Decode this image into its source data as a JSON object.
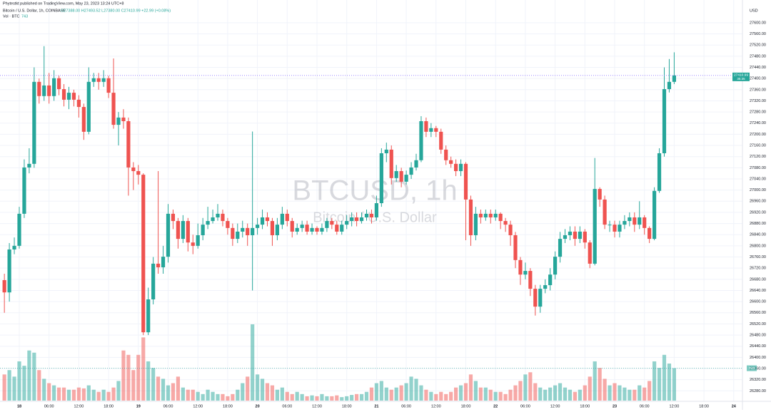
{
  "header": {
    "publisher": "Phytestkt published on TradingView.com, May 23, 2023 13:24 UTC+8",
    "symbol": "Bitcoin / U.S. Dollar, 1h, COINBASE",
    "ohlc": "O27388.00 H27493.52 L27380.00 C27410.99 +22.99 (+0.08%)",
    "volume_title": "Vol · BTC"
  },
  "chart_data": {
    "type": "candlestick",
    "currency": "USD",
    "watermark": "BTCUSD, 1h",
    "watermark_subtitle": "Bitcoin / U.S. Dollar",
    "up_color": "#26a69a",
    "down_color": "#ef5350",
    "grid": true,
    "last_price": 27410.99,
    "countdown": "35:35",
    "ylim": [
      26245,
      27656
    ],
    "yticks": [
      {
        "value": 27600,
        "label": "27600.00"
      },
      {
        "value": 27560,
        "label": "27560.00"
      },
      {
        "value": 27520,
        "label": "27520.00"
      },
      {
        "value": 27480,
        "label": "27480.00"
      },
      {
        "value": 27440,
        "label": "27440.00"
      },
      {
        "value": 27400,
        "label": "27400.00"
      },
      {
        "value": 27360,
        "label": "27360.00"
      },
      {
        "value": 27320,
        "label": "27320.00"
      },
      {
        "value": 27280,
        "label": "27280.00"
      },
      {
        "value": 27240,
        "label": "27240.00"
      },
      {
        "value": 27200,
        "label": "27200.00"
      },
      {
        "value": 27160,
        "label": "27160.00"
      },
      {
        "value": 27120,
        "label": "27120.00"
      },
      {
        "value": 27080,
        "label": "27080.00"
      },
      {
        "value": 27040,
        "label": "27040.00"
      },
      {
        "value": 27000,
        "label": "27000.00"
      },
      {
        "value": 26960,
        "label": "26960.00"
      },
      {
        "value": 26920,
        "label": "26920.00"
      },
      {
        "value": 26880,
        "label": "26880.00"
      },
      {
        "value": 26840,
        "label": "26840.00"
      },
      {
        "value": 26800,
        "label": "26800.00"
      },
      {
        "value": 26760,
        "label": "26760.00"
      },
      {
        "value": 26720,
        "label": "26720.00"
      },
      {
        "value": 26680,
        "label": "26680.00"
      },
      {
        "value": 26640,
        "label": "26640.00"
      },
      {
        "value": 26600,
        "label": "26600.00"
      },
      {
        "value": 26560,
        "label": "26560.00"
      },
      {
        "value": 26520,
        "label": "26520.00"
      },
      {
        "value": 26480,
        "label": "26480.00"
      },
      {
        "value": 26440,
        "label": "26440.00"
      },
      {
        "value": 26400,
        "label": "26400.00"
      },
      {
        "value": 26360,
        "label": "26360.00"
      },
      {
        "value": 26320,
        "label": "26320.00"
      },
      {
        "value": 26280,
        "label": "26280.00"
      }
    ],
    "categories": [
      null,
      null,
      null,
      "18",
      null,
      null,
      null,
      null,
      null,
      "06:00",
      null,
      null,
      null,
      null,
      null,
      "12:00",
      null,
      null,
      null,
      null,
      null,
      "18:00",
      null,
      null,
      null,
      null,
      null,
      "19",
      null,
      null,
      null,
      null,
      null,
      "06:00",
      null,
      null,
      null,
      null,
      null,
      "12:00",
      null,
      null,
      null,
      null,
      null,
      "18:00",
      null,
      null,
      null,
      null,
      null,
      "20",
      null,
      null,
      null,
      null,
      null,
      "06:00",
      null,
      null,
      null,
      null,
      null,
      "12:00",
      null,
      null,
      null,
      null,
      null,
      "18:00",
      null,
      null,
      null,
      null,
      null,
      "21",
      null,
      null,
      null,
      null,
      null,
      "06:00",
      null,
      null,
      null,
      null,
      null,
      "12:00",
      null,
      null,
      null,
      null,
      null,
      "18:00",
      null,
      null,
      null,
      null,
      null,
      "22",
      null,
      null,
      null,
      null,
      null,
      "06:00",
      null,
      null,
      null,
      null,
      null,
      "12:00",
      null,
      null,
      null,
      null,
      null,
      "18:00",
      null,
      null,
      null,
      null,
      null,
      "23",
      null,
      null,
      null,
      null,
      null,
      "06:00",
      null,
      null,
      null,
      null,
      null,
      "12:00",
      null,
      null,
      null,
      null,
      null,
      "18:00",
      null,
      null,
      null,
      null,
      null,
      "24"
    ],
    "open": [
      26677,
      26633,
      26787,
      26800,
      26915,
      27081,
      27094,
      27388,
      27337,
      27375,
      27337,
      27401,
      27362,
      27324,
      27349,
      27324,
      27298,
      27209,
      27388,
      27401,
      27388,
      27401,
      27349,
      27234,
      27260,
      27247,
      27081,
      27068,
      27055,
      26490,
      26608,
      26736,
      26723,
      26761,
      26915,
      26889,
      26825,
      26889,
      26812,
      26800,
      26838,
      26876,
      26889,
      26902,
      26915,
      26889,
      26864,
      26825,
      26851,
      26864,
      26838,
      26864,
      26876,
      26902,
      26889,
      26838,
      26876,
      26915,
      26889,
      26851,
      26864,
      26876,
      26851,
      26864,
      26851,
      26864,
      26889,
      26876,
      26851,
      26876,
      26889,
      26902,
      26889,
      26902,
      26915,
      26902,
      26953,
      27132,
      27145,
      27043,
      27068,
      27030,
      27055,
      27081,
      27107,
      27247,
      27209,
      27222,
      27209,
      27145,
      27107,
      27094,
      27068,
      27094,
      26966,
      26838,
      26915,
      26902,
      26915,
      26902,
      26915,
      26889,
      26876,
      26838,
      26749,
      26697,
      26710,
      26646,
      26582,
      26646,
      26659,
      26697,
      26761,
      26825,
      26838,
      26851,
      26825,
      26851,
      26812,
      26736,
      27004,
      26966,
      26876,
      26876,
      26851,
      26876,
      26889,
      26902,
      26876,
      26902,
      26864,
      26825,
      26997,
      27132,
      27362,
      27388,
      null,
      null,
      null,
      null,
      null,
      null,
      null,
      null,
      null,
      null,
      null,
      null
    ],
    "high": [
      26700,
      26810,
      26830,
      26940,
      27110,
      27150,
      27440,
      27400,
      27516,
      27420,
      27430,
      27410,
      27380,
      27370,
      27360,
      27340,
      27310,
      27440,
      27420,
      27420,
      27430,
      27410,
      27472,
      27280,
      27290,
      27260,
      27100,
      27090,
      27060,
      26650,
      26760,
      27068,
      26800,
      26950,
      26930,
      26900,
      26910,
      26900,
      26840,
      26880,
      26900,
      26940,
      26930,
      26950,
      26930,
      26900,
      26880,
      26880,
      26890,
      26880,
      27210,
      26900,
      26930,
      26920,
      26900,
      26900,
      26940,
      26930,
      26900,
      26880,
      26890,
      26890,
      26880,
      26870,
      26880,
      26900,
      26900,
      26890,
      26890,
      26910,
      26920,
      26920,
      26920,
      26930,
      26930,
      26980,
      27150,
      27170,
      27160,
      27090,
      27080,
      27070,
      27100,
      27130,
      27265,
      27260,
      27240,
      27230,
      27220,
      27160,
      27120,
      27110,
      27110,
      27100,
      26980,
      26940,
      26930,
      26930,
      26930,
      26930,
      26920,
      26900,
      26890,
      26850,
      26760,
      26740,
      26720,
      26660,
      26660,
      26680,
      26720,
      26780,
      26850,
      26860,
      26870,
      26870,
      26870,
      26860,
      26820,
      27115,
      27010,
      26980,
      26890,
      26890,
      26890,
      26910,
      26920,
      26920,
      26960,
      26910,
      26870,
      27010,
      27150,
      27440,
      27470,
      27494,
      null,
      null,
      null,
      null,
      null,
      null,
      null,
      null,
      null,
      null,
      null,
      null
    ],
    "low": [
      26560,
      26600,
      26770,
      26790,
      26900,
      27060,
      27080,
      27310,
      27320,
      27310,
      27320,
      27340,
      27300,
      27290,
      27300,
      27260,
      27180,
      27200,
      27370,
      27360,
      27370,
      27330,
      27220,
      27160,
      27220,
      26980,
      27000,
      27020,
      26480,
      26480,
      26590,
      26700,
      26700,
      26740,
      26860,
      26790,
      26810,
      26780,
      26770,
      26790,
      26820,
      26860,
      26880,
      26890,
      26870,
      26840,
      26800,
      26810,
      26830,
      26800,
      26640,
      26840,
      26860,
      26870,
      26800,
      26820,
      26860,
      26870,
      26830,
      26840,
      26850,
      26840,
      26840,
      26840,
      26840,
      26850,
      26860,
      26840,
      26840,
      26860,
      26870,
      26870,
      26880,
      26890,
      26880,
      26890,
      26940,
      27100,
      27020,
      27030,
      27010,
      27020,
      27040,
      27070,
      27100,
      27190,
      27190,
      27190,
      27130,
      27090,
      27080,
      27050,
      27050,
      26820,
      26800,
      26820,
      26880,
      26890,
      26880,
      26890,
      26860,
      26850,
      26800,
      26720,
      26660,
      26680,
      26620,
      26550,
      26560,
      26630,
      26640,
      26680,
      26740,
      26810,
      26820,
      26800,
      26810,
      26790,
      26720,
      26730,
      26940,
      26860,
      26850,
      26830,
      26830,
      26860,
      26870,
      26850,
      26860,
      26840,
      26810,
      26820,
      26990,
      27120,
      27350,
      27380,
      null,
      null,
      null,
      null,
      null,
      null,
      null,
      null,
      null,
      null,
      null,
      null
    ],
    "close": [
      26633,
      26787,
      26800,
      26915,
      27081,
      27094,
      27388,
      27337,
      27375,
      27337,
      27401,
      27362,
      27324,
      27349,
      27324,
      27298,
      27209,
      27388,
      27401,
      27388,
      27401,
      27349,
      27234,
      27260,
      27247,
      27081,
      27068,
      27055,
      26490,
      26608,
      26736,
      26723,
      26761,
      26915,
      26889,
      26825,
      26889,
      26812,
      26800,
      26838,
      26876,
      26889,
      26902,
      26915,
      26889,
      26864,
      26825,
      26851,
      26864,
      26838,
      26864,
      26876,
      26902,
      26889,
      26838,
      26876,
      26915,
      26889,
      26851,
      26864,
      26876,
      26851,
      26864,
      26851,
      26864,
      26889,
      26876,
      26851,
      26876,
      26889,
      26902,
      26889,
      26902,
      26915,
      26902,
      26953,
      27132,
      27145,
      27043,
      27068,
      27030,
      27055,
      27081,
      27107,
      27247,
      27209,
      27222,
      27209,
      27145,
      27107,
      27094,
      27068,
      27094,
      26966,
      26838,
      26915,
      26902,
      26915,
      26902,
      26915,
      26889,
      26876,
      26838,
      26749,
      26697,
      26710,
      26646,
      26582,
      26646,
      26659,
      26697,
      26761,
      26825,
      26838,
      26851,
      26825,
      26851,
      26812,
      26736,
      27004,
      26966,
      26876,
      26876,
      26851,
      26876,
      26889,
      26902,
      26876,
      26902,
      26864,
      26825,
      26997,
      27132,
      27362,
      27388,
      27410.99,
      null,
      null,
      null,
      null,
      null,
      null,
      null,
      null,
      null,
      null,
      null,
      null
    ],
    "volume": [
      600,
      700,
      550,
      900,
      800,
      1150,
      1100,
      700,
      500,
      400,
      350,
      300,
      300,
      250,
      250,
      300,
      280,
      350,
      250,
      200,
      250,
      200,
      300,
      450,
      1150,
      1050,
      700,
      1050,
      1450,
      900,
      750,
      550,
      500,
      350,
      400,
      550,
      300,
      250,
      250,
      200,
      150,
      250,
      200,
      150,
      150,
      100,
      150,
      250,
      400,
      550,
      1750,
      600,
      500,
      400,
      350,
      250,
      300,
      200,
      150,
      200,
      150,
      100,
      120,
      100,
      150,
      100,
      100,
      120,
      80,
      100,
      130,
      150,
      150,
      200,
      300,
      400,
      450,
      300,
      250,
      300,
      350,
      400,
      550,
      500,
      350,
      250,
      200,
      150,
      200,
      150,
      200,
      300,
      350,
      400,
      600,
      450,
      300,
      300,
      250,
      200,
      200,
      150,
      250,
      350,
      450,
      600,
      650,
      400,
      300,
      250,
      300,
      350,
      400,
      300,
      250,
      200,
      250,
      350,
      550,
      900,
      750,
      500,
      350,
      400,
      350,
      300,
      250,
      250,
      350,
      300,
      450,
      900,
      750,
      1050,
      850,
      743,
      null,
      null,
      null,
      null,
      null,
      null,
      null,
      null,
      null,
      null,
      null,
      null
    ]
  }
}
